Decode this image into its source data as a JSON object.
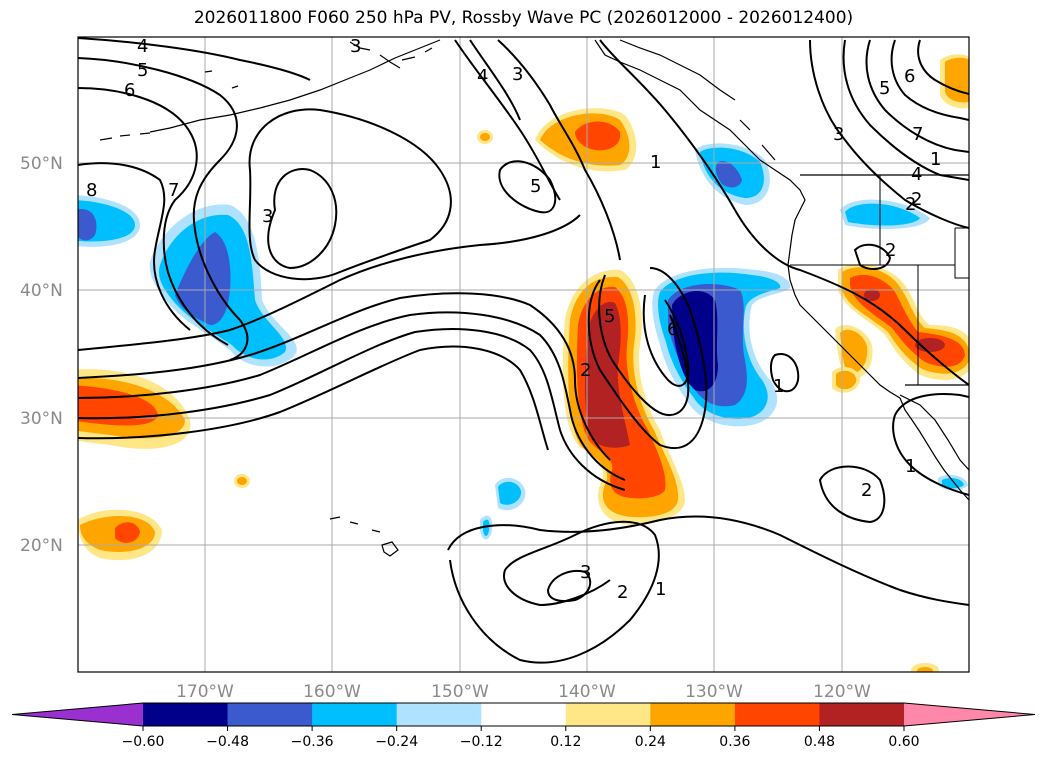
{
  "title": "2026011800 F060 250 hPa PV, Rossby Wave PC (2026012000 - 2026012400)",
  "lat_labels": [
    {
      "label": "50°N",
      "lat": 50
    },
    {
      "label": "40°N",
      "lat": 40
    },
    {
      "label": "30°N",
      "lat": 30
    },
    {
      "label": "20°N",
      "lat": 20
    }
  ],
  "lon_labels": [
    {
      "label": "170°W",
      "lon": -170
    },
    {
      "label": "160°W",
      "lon": -160
    },
    {
      "label": "150°W",
      "lon": -150
    },
    {
      "label": "140°W",
      "lon": -140
    },
    {
      "label": "130°W",
      "lon": -130
    },
    {
      "label": "120°W",
      "lon": -120
    }
  ],
  "contour_labels": [
    "4",
    "5",
    "6",
    "8",
    "7",
    "3",
    "4",
    "3",
    "5",
    "1",
    "2",
    "5",
    "6",
    "2",
    "1",
    "3",
    "2",
    "1",
    "3",
    "2",
    "1",
    "2",
    "1",
    "7",
    "6",
    "5",
    "4",
    "3",
    "2"
  ],
  "colorbar": {
    "ticks": [
      "−0.60",
      "−0.48",
      "−0.36",
      "−0.24",
      "−0.12",
      "0.12",
      "0.24",
      "0.36",
      "0.48",
      "0.60"
    ],
    "colors": [
      "#9b30d0",
      "#00008b",
      "#3a5acd",
      "#00bfff",
      "#aee2ff",
      "#ffffff",
      "#ffe787",
      "#ffa500",
      "#ff4500",
      "#b22222",
      "#ff88aa"
    ]
  }
}
